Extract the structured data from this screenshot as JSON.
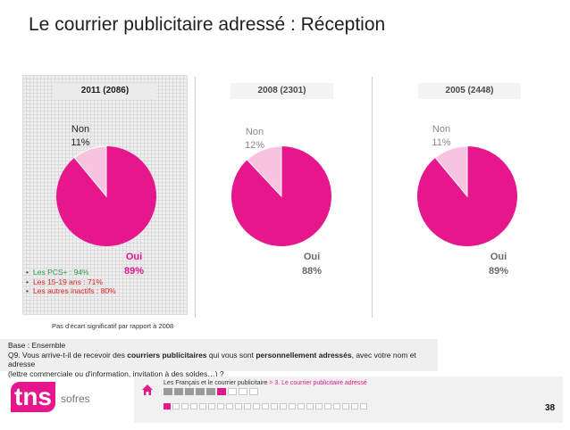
{
  "title": "Le courrier publicitaire adressé : Réception",
  "chart_data": [
    {
      "type": "pie",
      "title": "2011 (2086)",
      "categories": [
        "Oui",
        "Non"
      ],
      "values": [
        89,
        11
      ],
      "labels": [
        "89%",
        "11%"
      ],
      "colors": [
        "#e6168d",
        "#f7c3e0"
      ],
      "highlighted": true
    },
    {
      "type": "pie",
      "title": "2008 (2301)",
      "categories": [
        "Oui",
        "Non"
      ],
      "values": [
        88,
        12
      ],
      "labels": [
        "88%",
        "12%"
      ],
      "colors": [
        "#e6168d",
        "#f7c3e0"
      ],
      "highlighted": false
    },
    {
      "type": "pie",
      "title": "2005 (2448)",
      "categories": [
        "Oui",
        "Non"
      ],
      "values": [
        89,
        11
      ],
      "labels": [
        "89%",
        "11%"
      ],
      "colors": [
        "#e6168d",
        "#f7c3e0"
      ],
      "highlighted": false
    }
  ],
  "bullets": [
    {
      "text": "Les PCS+ : 94%",
      "color": "#2e9e48"
    },
    {
      "text": "Les 15-19 ans : 71%",
      "color": "#e02020"
    },
    {
      "text": "Les autres inactifs : 80%",
      "color": "#e02020"
    }
  ],
  "note": "Pas d'écart significatif par rapport à 2008",
  "base": {
    "line1": "Base : Ensemble",
    "q_prefix": "Q9. Vous arrive-t-il de recevoir des ",
    "q_bold1": "courriers publicitaires",
    "q_mid": " qui vous sont ",
    "q_bold2": "personnellement adressés",
    "q_suffix": ", avec votre nom et adresse",
    "line3": "(lettre commerciale ou d'information, invitation à des soldes…) ?"
  },
  "footer": {
    "breadcrumb_main": "Les Français et le courrier publicitaire",
    "breadcrumb_sep": " > ",
    "breadcrumb_section": "3. Le courrier publicitaire adressé",
    "logo_tns": "tns",
    "logo_sofres": "sofres",
    "page_number": "38",
    "row1": [
      "grey",
      "grey",
      "grey",
      "grey",
      "grey",
      "pink",
      "white",
      "white",
      "white"
    ],
    "row2": [
      "pink",
      "white",
      "white",
      "white",
      "white",
      "white",
      "white",
      "white",
      "white",
      "white",
      "white",
      "white",
      "white",
      "white",
      "white",
      "white",
      "white",
      "white",
      "white",
      "white",
      "white",
      "white",
      "white"
    ]
  },
  "colors": {
    "accent": "#e6168d",
    "accent_light": "#f7c3e0"
  },
  "icons": {
    "home": "home-icon"
  }
}
